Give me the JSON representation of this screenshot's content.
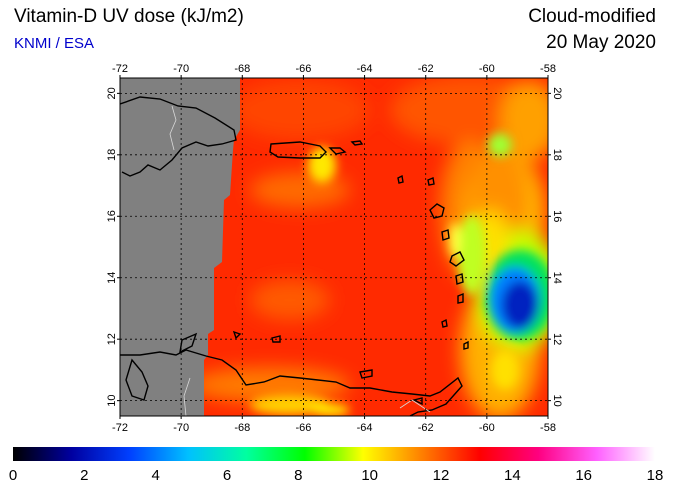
{
  "header": {
    "title": "Vitamin-D UV dose (kJ/m2)",
    "organization": "KNMI / ESA",
    "product": "Cloud-modified",
    "date": "20 May 2020"
  },
  "map": {
    "lon_range": [
      -72,
      -58
    ],
    "lat_range": [
      9.5,
      20.5
    ],
    "lon_ticks": [
      "-72",
      "-70",
      "-68",
      "-66",
      "-64",
      "-62",
      "-60",
      "-58"
    ],
    "lat_ticks": [
      "10",
      "12",
      "14",
      "16",
      "18",
      "20"
    ],
    "no_data_color": "#808080"
  },
  "colorbar": {
    "labels": [
      "0",
      "2",
      "4",
      "6",
      "8",
      "10",
      "12",
      "14",
      "16",
      "18"
    ],
    "colors": [
      "#000000",
      "#0000a0",
      "#0040ff",
      "#00c0ff",
      "#00ffa0",
      "#00ff00",
      "#ffff00",
      "#ff8000",
      "#ff0000",
      "#ff0080",
      "#ff60ff",
      "#ffffff"
    ]
  }
}
